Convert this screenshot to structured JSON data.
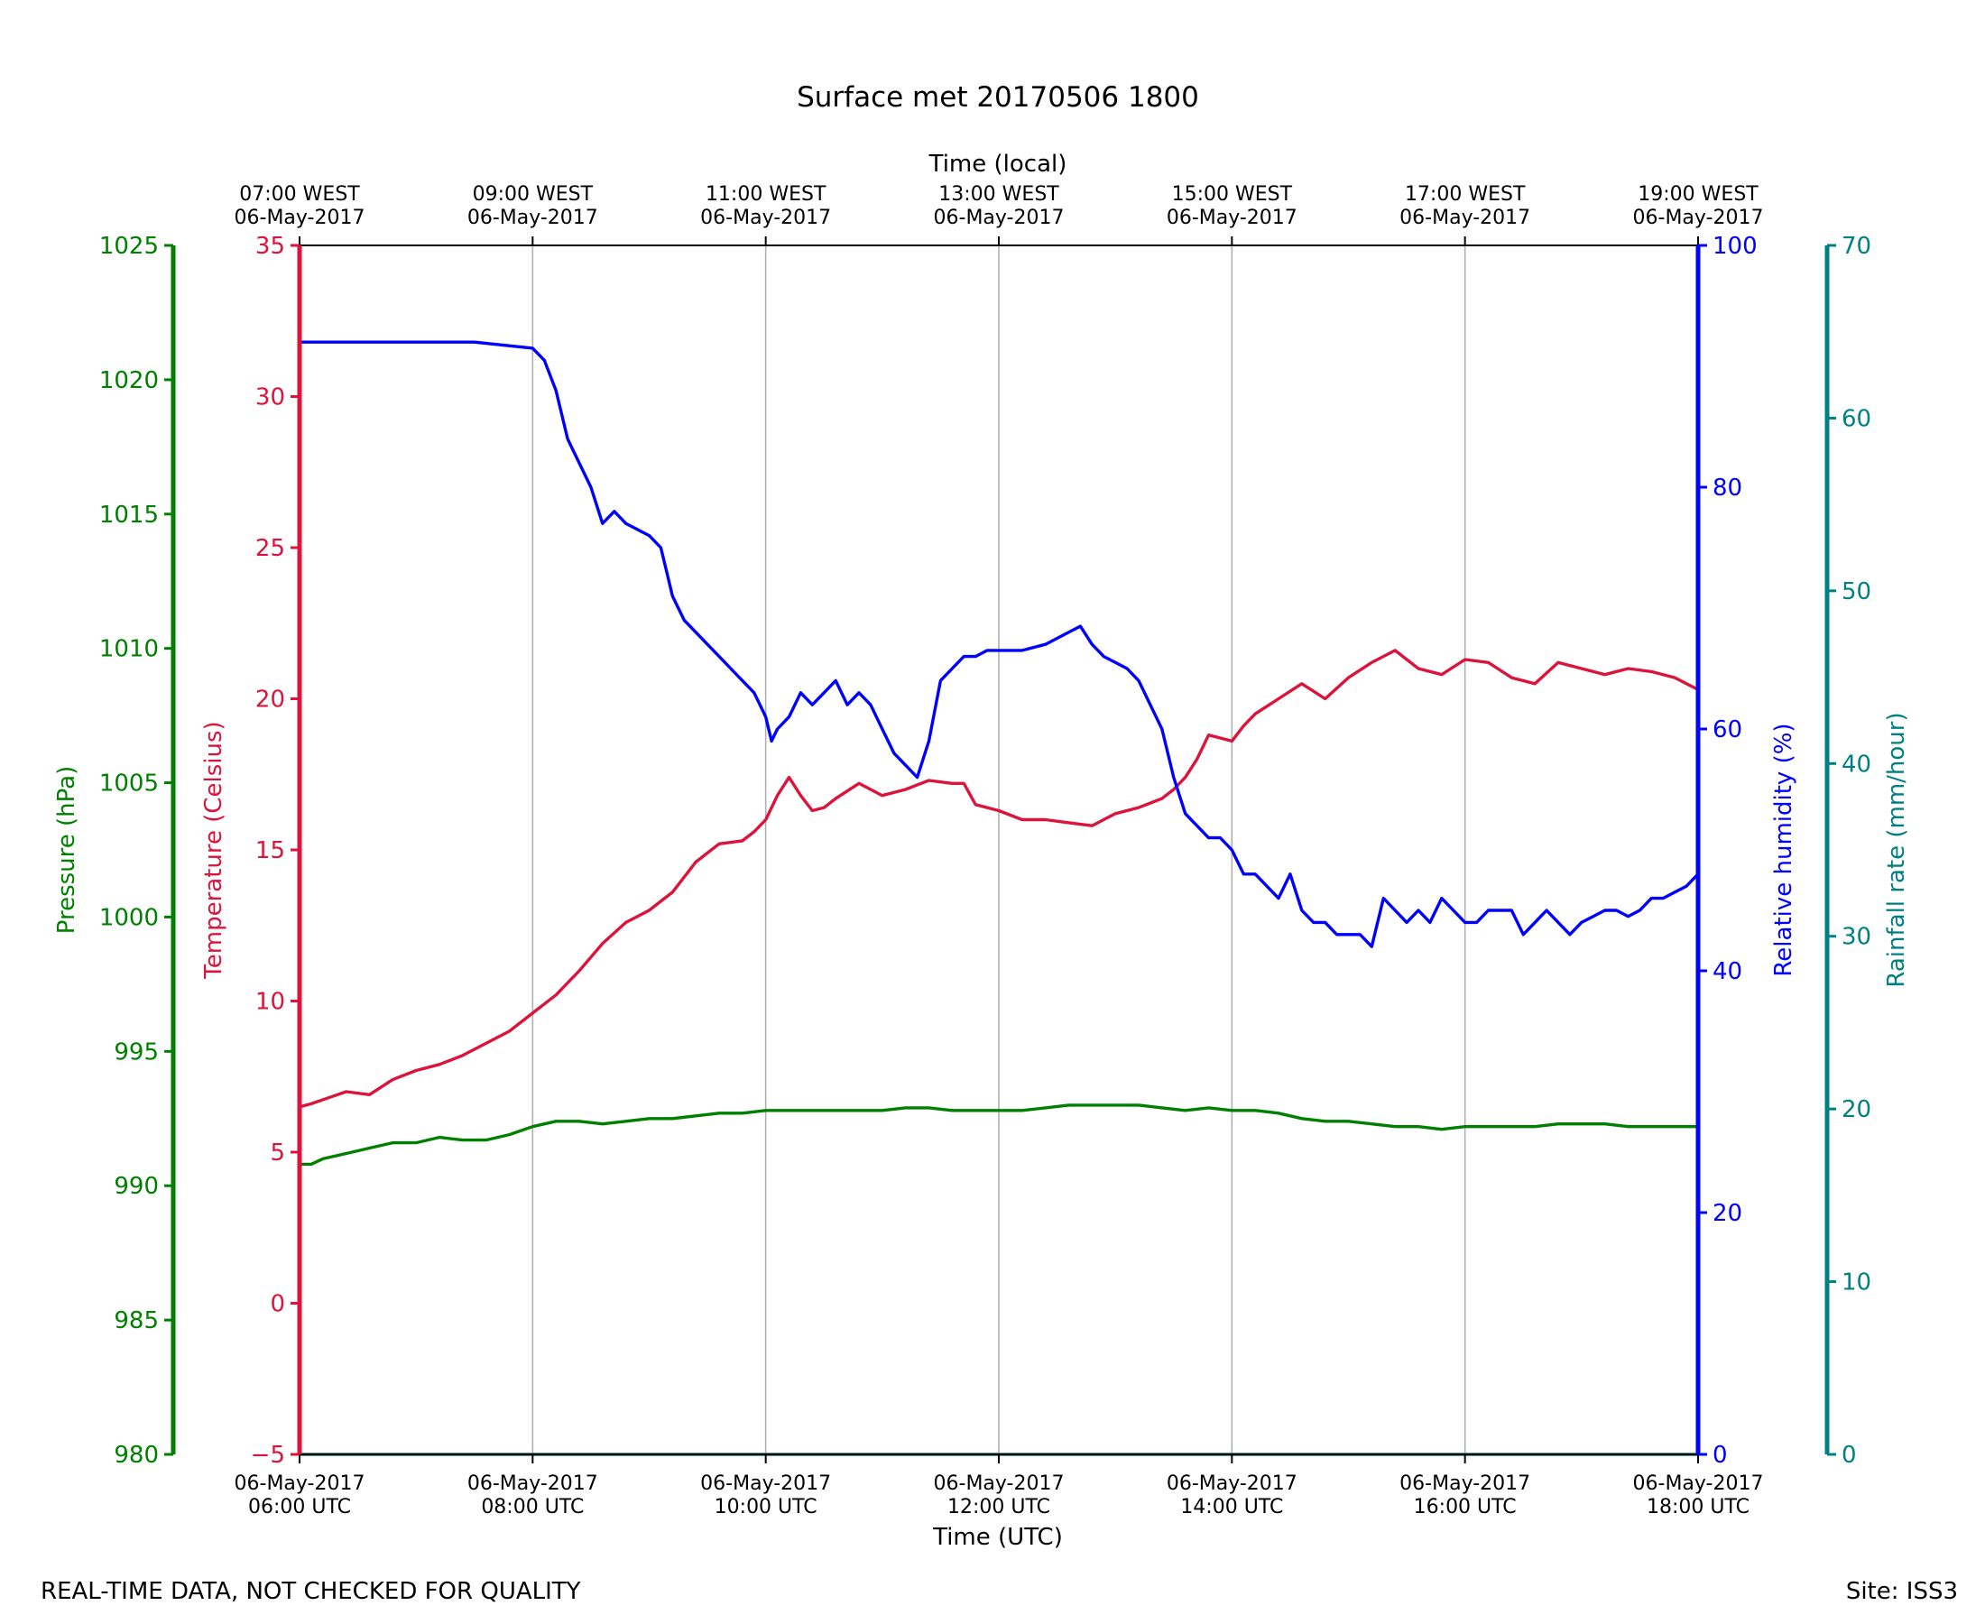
{
  "chart_data": {
    "type": "line",
    "title": "Surface met 20170506 1800",
    "top_axis_label": "Time (local)",
    "xlabel": "Time (UTC)",
    "footer_left": "REAL-TIME DATA, NOT CHECKED FOR QUALITY",
    "footer_right": "Site: ISS3",
    "x_range_hours": [
      6,
      18
    ],
    "x_ticks": [
      {
        "hour": 6,
        "utc_date": "06-May-2017",
        "utc_time": "06:00 UTC",
        "local_time": "07:00 WEST",
        "local_date": "06-May-2017"
      },
      {
        "hour": 8,
        "utc_date": "06-May-2017",
        "utc_time": "08:00 UTC",
        "local_time": "09:00 WEST",
        "local_date": "06-May-2017"
      },
      {
        "hour": 10,
        "utc_date": "06-May-2017",
        "utc_time": "10:00 UTC",
        "local_time": "11:00 WEST",
        "local_date": "06-May-2017"
      },
      {
        "hour": 12,
        "utc_date": "06-May-2017",
        "utc_time": "12:00 UTC",
        "local_time": "13:00 WEST",
        "local_date": "06-May-2017"
      },
      {
        "hour": 14,
        "utc_date": "06-May-2017",
        "utc_time": "14:00 UTC",
        "local_time": "15:00 WEST",
        "local_date": "06-May-2017"
      },
      {
        "hour": 16,
        "utc_date": "06-May-2017",
        "utc_time": "16:00 UTC",
        "local_time": "17:00 WEST",
        "local_date": "06-May-2017"
      },
      {
        "hour": 18,
        "utc_date": "06-May-2017",
        "utc_time": "18:00 UTC",
        "local_time": "19:00 WEST",
        "local_date": "06-May-2017"
      }
    ],
    "axes": [
      {
        "id": "pressure",
        "label": "Pressure (hPa)",
        "color": "#008000",
        "range": [
          980,
          1025
        ],
        "ticks": [
          980,
          985,
          990,
          995,
          1000,
          1005,
          1010,
          1015,
          1020,
          1025
        ]
      },
      {
        "id": "temperature",
        "label": "Temperature (Celsius)",
        "color": "#dc143c",
        "range": [
          -5,
          35
        ],
        "ticks": [
          -5,
          0,
          5,
          10,
          15,
          20,
          25,
          30,
          35
        ]
      },
      {
        "id": "humidity",
        "label": "Relative humidity (%)",
        "color": "#0000ff",
        "range": [
          0,
          100
        ],
        "ticks": [
          0,
          20,
          40,
          60,
          80,
          100
        ]
      },
      {
        "id": "rainfall",
        "label": "Rainfall rate (mm/hour)",
        "color": "#008080",
        "range": [
          0,
          70
        ],
        "ticks": [
          0,
          10,
          20,
          30,
          40,
          50,
          60,
          70
        ]
      }
    ],
    "series": [
      {
        "name": "Temperature",
        "axis": "temperature",
        "color": "#dc143c",
        "x": [
          6.0,
          6.1,
          6.25,
          6.4,
          6.6,
          6.8,
          7.0,
          7.2,
          7.4,
          7.6,
          7.8,
          8.0,
          8.2,
          8.4,
          8.6,
          8.8,
          9.0,
          9.1,
          9.2,
          9.4,
          9.6,
          9.8,
          9.9,
          10.0,
          10.1,
          10.2,
          10.3,
          10.4,
          10.5,
          10.6,
          10.8,
          11.0,
          11.2,
          11.4,
          11.6,
          11.7,
          11.8,
          12.0,
          12.2,
          12.4,
          12.6,
          12.8,
          13.0,
          13.2,
          13.4,
          13.5,
          13.6,
          13.7,
          13.8,
          13.9,
          14.0,
          14.1,
          14.2,
          14.4,
          14.6,
          14.8,
          15.0,
          15.2,
          15.4,
          15.6,
          15.8,
          16.0,
          16.2,
          16.4,
          16.6,
          16.8,
          17.0,
          17.2,
          17.4,
          17.6,
          17.8,
          18.0
        ],
        "values": [
          6.5,
          6.6,
          6.8,
          7.0,
          6.9,
          7.4,
          7.7,
          7.9,
          8.2,
          8.6,
          9.0,
          9.6,
          10.2,
          11.0,
          11.9,
          12.6,
          13.0,
          13.3,
          13.6,
          14.6,
          15.2,
          15.3,
          15.6,
          16.0,
          16.8,
          17.4,
          16.8,
          16.3,
          16.4,
          16.7,
          17.2,
          16.8,
          17.0,
          17.3,
          17.2,
          17.2,
          16.5,
          16.3,
          16.0,
          16.0,
          15.9,
          15.8,
          16.2,
          16.4,
          16.7,
          17.0,
          17.4,
          18.0,
          18.8,
          18.7,
          18.6,
          19.1,
          19.5,
          20.0,
          20.5,
          20.0,
          20.7,
          21.2,
          21.6,
          21.0,
          20.8,
          21.3,
          21.2,
          20.7,
          20.5,
          21.2,
          21.0,
          20.8,
          21.0,
          20.9,
          20.7,
          20.3
        ]
      },
      {
        "name": "Relative humidity",
        "axis": "humidity",
        "color": "#0000ff",
        "x": [
          6.0,
          6.1,
          6.5,
          7.0,
          7.5,
          8.0,
          8.1,
          8.2,
          8.3,
          8.35,
          8.4,
          8.5,
          8.6,
          8.7,
          8.8,
          9.0,
          9.1,
          9.15,
          9.2,
          9.3,
          9.4,
          9.5,
          9.6,
          9.7,
          9.8,
          9.9,
          10.0,
          10.05,
          10.1,
          10.2,
          10.3,
          10.4,
          10.5,
          10.6,
          10.7,
          10.8,
          10.9,
          11.0,
          11.1,
          11.2,
          11.3,
          11.4,
          11.5,
          11.6,
          11.7,
          11.8,
          11.9,
          12.0,
          12.2,
          12.4,
          12.6,
          12.7,
          12.8,
          12.9,
          13.0,
          13.1,
          13.2,
          13.3,
          13.4,
          13.5,
          13.6,
          13.7,
          13.8,
          13.9,
          14.0,
          14.1,
          14.2,
          14.3,
          14.4,
          14.5,
          14.6,
          14.7,
          14.8,
          14.9,
          15.0,
          15.1,
          15.2,
          15.3,
          15.4,
          15.5,
          15.6,
          15.7,
          15.8,
          15.9,
          16.0,
          16.1,
          16.2,
          16.3,
          16.4,
          16.5,
          16.6,
          16.7,
          16.8,
          16.9,
          17.0,
          17.1,
          17.2,
          17.3,
          17.4,
          17.5,
          17.6,
          17.7,
          17.8,
          17.9,
          18.0
        ],
        "values": [
          92,
          92,
          92,
          92,
          92,
          91.5,
          90.5,
          88,
          84,
          83,
          82,
          80,
          77,
          78,
          77,
          76,
          75,
          73,
          71,
          69,
          68,
          67,
          66,
          65,
          64,
          63,
          61,
          59,
          60,
          61,
          63,
          62,
          63,
          64,
          62,
          63,
          62,
          60,
          58,
          57,
          56,
          59,
          64,
          65,
          66,
          66,
          66.5,
          66.5,
          66.5,
          67,
          68,
          68.5,
          67,
          66,
          65.5,
          65,
          64,
          62,
          60,
          56,
          53,
          52,
          51,
          51,
          50,
          48,
          48,
          47,
          46,
          48,
          45,
          44,
          44,
          43,
          43,
          43,
          42,
          46,
          45,
          44,
          45,
          44,
          46,
          45,
          44,
          44,
          45,
          45,
          45,
          43,
          44,
          45,
          44,
          43,
          44,
          44.5,
          45,
          45,
          44.5,
          45,
          46,
          46,
          46.5,
          47,
          48
        ]
      },
      {
        "name": "Pressure",
        "axis": "pressure",
        "color": "#008000",
        "x": [
          6.0,
          6.1,
          6.2,
          6.4,
          6.6,
          6.8,
          7.0,
          7.2,
          7.4,
          7.6,
          7.8,
          8.0,
          8.2,
          8.4,
          8.6,
          8.8,
          9.0,
          9.2,
          9.4,
          9.6,
          9.8,
          10.0,
          10.2,
          10.4,
          10.6,
          10.8,
          11.0,
          11.2,
          11.4,
          11.6,
          11.8,
          12.0,
          12.2,
          12.4,
          12.6,
          12.8,
          13.0,
          13.2,
          13.4,
          13.6,
          13.8,
          14.0,
          14.2,
          14.4,
          14.6,
          14.8,
          15.0,
          15.2,
          15.4,
          15.6,
          15.8,
          16.0,
          16.2,
          16.4,
          16.6,
          16.8,
          17.0,
          17.2,
          17.4,
          17.6,
          17.8,
          18.0
        ],
        "values": [
          990.8,
          990.8,
          991.0,
          991.2,
          991.4,
          991.6,
          991.6,
          991.8,
          991.7,
          991.7,
          991.9,
          992.2,
          992.4,
          992.4,
          992.3,
          992.4,
          992.5,
          992.5,
          992.6,
          992.7,
          992.7,
          992.8,
          992.8,
          992.8,
          992.8,
          992.8,
          992.8,
          992.9,
          992.9,
          992.8,
          992.8,
          992.8,
          992.8,
          992.9,
          993.0,
          993.0,
          993.0,
          993.0,
          992.9,
          992.8,
          992.9,
          992.8,
          992.8,
          992.7,
          992.5,
          992.4,
          992.4,
          992.3,
          992.2,
          992.2,
          992.1,
          992.2,
          992.2,
          992.2,
          992.2,
          992.3,
          992.3,
          992.3,
          992.2,
          992.2,
          992.2,
          992.2
        ]
      },
      {
        "name": "Rainfall rate",
        "axis": "rainfall",
        "color": "#008080",
        "x": [
          6.0,
          18.0
        ],
        "values": [
          0,
          0
        ]
      }
    ]
  }
}
